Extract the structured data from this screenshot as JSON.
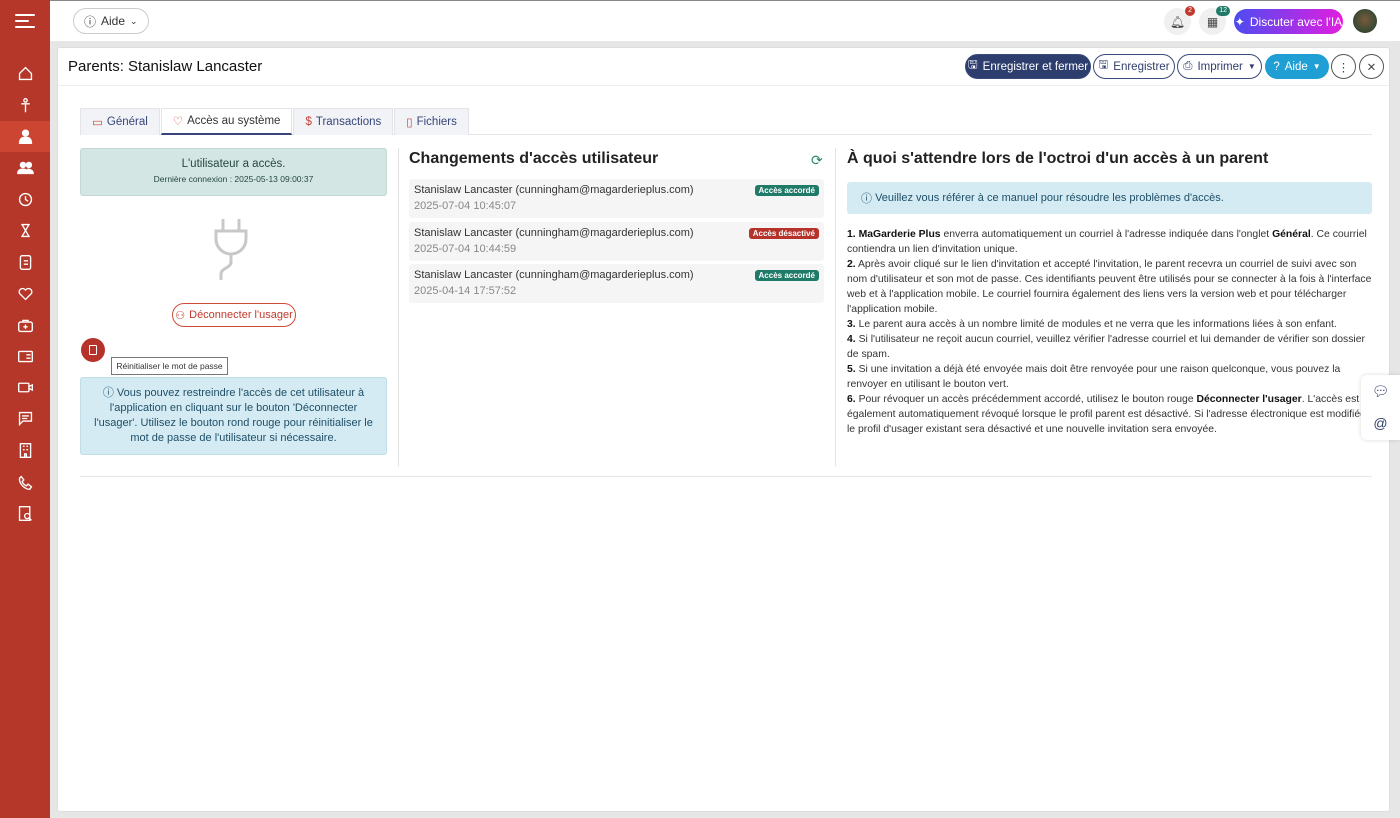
{
  "topbar": {
    "aide_label": "Aide",
    "notifications_count": "2",
    "tasks_count": "12",
    "ai_button": "Discuter avec l'IA"
  },
  "header": {
    "title": "Parents: Stanislaw Lancaster",
    "save_close": "Enregistrer et fermer",
    "save": "Enregistrer",
    "print": "Imprimer",
    "aide": "Aide"
  },
  "tabs": [
    {
      "label": "Général"
    },
    {
      "label": "Accès au système"
    },
    {
      "label": "Transactions"
    },
    {
      "label": "Fichiers"
    }
  ],
  "access": {
    "status": "L'utilisateur a accès.",
    "last_login": "Dernière connexion : 2025-05-13 09:00:37",
    "disconnect_button": "Déconnecter l'usager",
    "reset_tooltip": "Réinitialiser le mot de passe",
    "info": "Vous pouvez restreindre l'accès de cet utilisateur à l'application en cliquant sur le bouton 'Déconnecter l'usager'. Utilisez le bouton rond rouge pour réinitialiser le mot de passe de l'utilisateur si nécessaire."
  },
  "changes": {
    "title": "Changements d'accès utilisateur",
    "items": [
      {
        "who": "Stanislaw Lancaster (cunningham@magarderieplus.com)",
        "when": "2025-07-04 10:45:07",
        "status": "Accès accordé",
        "color": "#1f7a68"
      },
      {
        "who": "Stanislaw Lancaster (cunningham@magarderieplus.com)",
        "when": "2025-07-04 10:44:59",
        "status": "Accès désactivé",
        "color": "#b5332a"
      },
      {
        "who": "Stanislaw Lancaster (cunningham@magarderieplus.com)",
        "when": "2025-04-14 17:57:52",
        "status": "Accès accordé",
        "color": "#1f7a68"
      }
    ]
  },
  "guide": {
    "title": "À quoi s'attendre lors de l'octroi d'un accès à un parent",
    "info": "Veuillez vous référer à ce manuel pour résoudre les problèmes d'accès.",
    "items": [
      {
        "n": "1.",
        "b1": "MaGarderie Plus",
        "t1": " enverra automatiquement un courriel à l'adresse indiquée dans l'onglet ",
        "b2": "Général",
        "t2": ". Ce courriel contiendra un lien d'invitation unique."
      },
      {
        "n": "2.",
        "t1": " Après avoir cliqué sur le lien d'invitation et accepté l'invitation, le parent recevra un courriel de suivi avec son nom d'utilisateur et son mot de passe. Ces identifiants peuvent être utilisés pour se connecter à la fois à l'interface web et à l'application mobile. Le courriel fournira également des liens vers la version web et pour télécharger l'application mobile."
      },
      {
        "n": "3.",
        "t1": " Le parent aura accès à un nombre limité de modules et ne verra que les informations liées à son enfant."
      },
      {
        "n": "4.",
        "t1": " Si l'utilisateur ne reçoit aucun courriel, veuillez vérifier l'adresse courriel et lui demander de vérifier son dossier de spam."
      },
      {
        "n": "5.",
        "t1": " Si une invitation a déjà été envoyée mais doit être renvoyée pour une raison quelconque, vous pouvez la renvoyer en utilisant le bouton vert."
      },
      {
        "n": "6.",
        "t1": " Pour révoquer un accès précédemment accordé, utilisez le bouton rouge ",
        "b2": "Déconnecter l'usager",
        "t2": ". L'accès est également automatiquement révoqué lorsque le profil parent est désactivé. Si l'adresse électronique est modifiée, le profil d'usager existant sera désactivé et une nouvelle invitation sera envoyée."
      }
    ]
  },
  "colors": {
    "sidebar": "#b5372a",
    "primary": "#2d3e6e",
    "aide": "#1f9fd4",
    "granted": "#1f7a68",
    "revoked": "#b5332a"
  }
}
